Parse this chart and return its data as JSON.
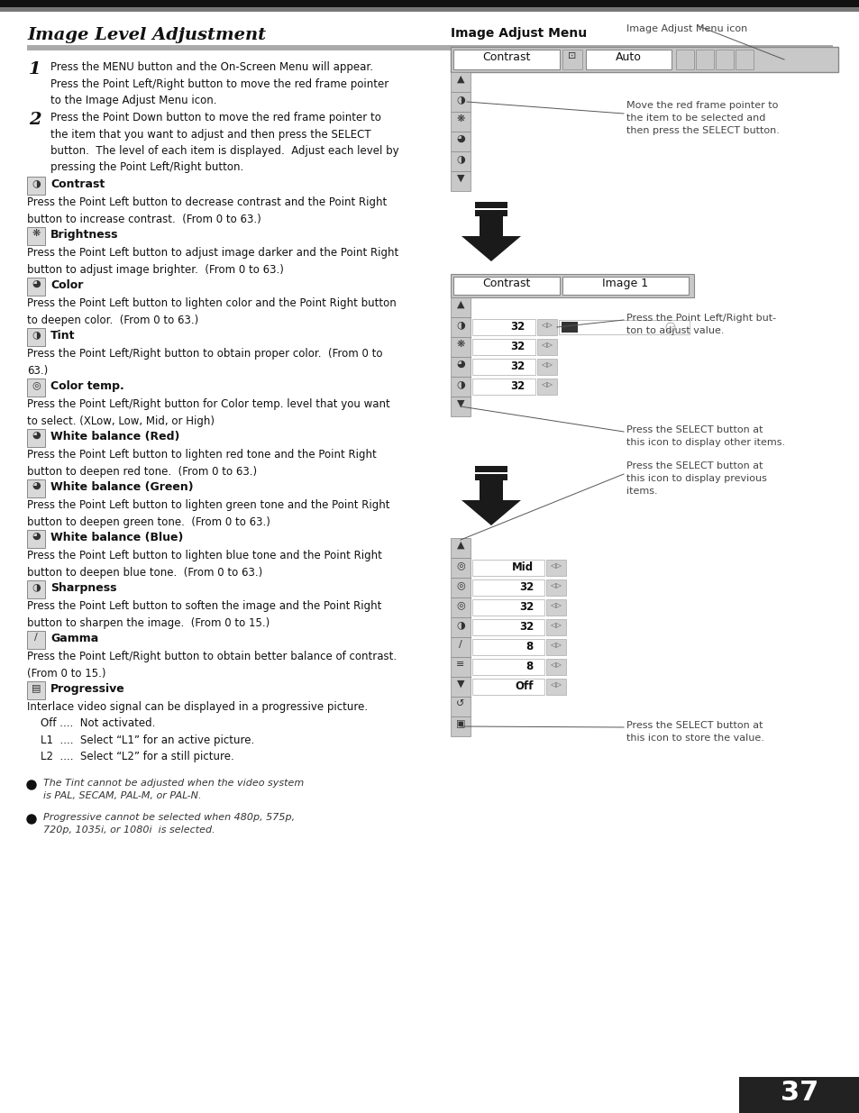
{
  "page_number": "37",
  "title": "Image Level Adjustment",
  "bg_color": "#ffffff",
  "step1": "Press the MENU button and the On-Screen Menu will appear.\nPress the Point Left/Right button to move the red frame pointer\nto the Image Adjust Menu icon.",
  "step2": "Press the Point Down button to move the red frame pointer to\nthe item that you want to adjust and then press the SELECT\nbutton.  The level of each item is displayed.  Adjust each level by\npressing the Point Left/Right button.",
  "sections": [
    {
      "title": "Contrast",
      "body": "Press the Point Left button to decrease contrast and the Point Right\nbutton to increase contrast.  (From 0 to 63.)"
    },
    {
      "title": "Brightness",
      "body": "Press the Point Left button to adjust image darker and the Point Right\nbutton to adjust image brighter.  (From 0 to 63.)"
    },
    {
      "title": "Color",
      "body": "Press the Point Left button to lighten color and the Point Right button\nto deepen color.  (From 0 to 63.)"
    },
    {
      "title": "Tint",
      "body": "Press the Point Left/Right button to obtain proper color.  (From 0 to\n63.)"
    },
    {
      "title": "Color temp.",
      "body": "Press the Point Left/Right button for Color temp. level that you want\nto select. (XLow, Low, Mid, or High)"
    },
    {
      "title": "White balance (Red)",
      "body": "Press the Point Left button to lighten red tone and the Point Right\nbutton to deepen red tone.  (From 0 to 63.)"
    },
    {
      "title": "White balance (Green)",
      "body": "Press the Point Left button to lighten green tone and the Point Right\nbutton to deepen green tone.  (From 0 to 63.)"
    },
    {
      "title": "White balance (Blue)",
      "body": "Press the Point Left button to lighten blue tone and the Point Right\nbutton to deepen blue tone.  (From 0 to 63.)"
    },
    {
      "title": "Sharpness",
      "body": "Press the Point Left button to soften the image and the Point Right\nbutton to sharpen the image.  (From 0 to 15.)"
    },
    {
      "title": "Gamma",
      "body": "Press the Point Left/Right button to obtain better balance of contrast.\n(From 0 to 15.)"
    },
    {
      "title": "Progressive",
      "body": "Interlace video signal can be displayed in a progressive picture.\n    Off ....  Not activated.\n    L1  ....  Select “L1” for an active picture.\n    L2  ....  Select “L2” for a still picture."
    }
  ],
  "notes": [
    "The Tint cannot be adjusted when the video system\nis PAL, SECAM, PAL-M, or PAL-N.",
    "Progressive cannot be selected when 480p, 575p,\n720p, 1035i, or 1080i  is selected."
  ],
  "ann1": "Image Adjust Menu icon",
  "ann2": "Move the red frame pointer to\nthe item to be selected and\nthen press the SELECT button.",
  "ann3": "Press the Point Left/Right but-\nton to adjust value.",
  "ann4": "Press the SELECT button at\nthis icon to display other items.",
  "ann5": "Press the SELECT button at\nthis icon to display previous\nitems.",
  "ann6": "Press the SELECT button at\nthis icon to store the value.",
  "panel1_rows": [
    "32",
    "32",
    "32",
    "32"
  ],
  "panel2_rows": [
    "Mid",
    "32",
    "32",
    "32",
    "8",
    "8",
    "Off"
  ]
}
